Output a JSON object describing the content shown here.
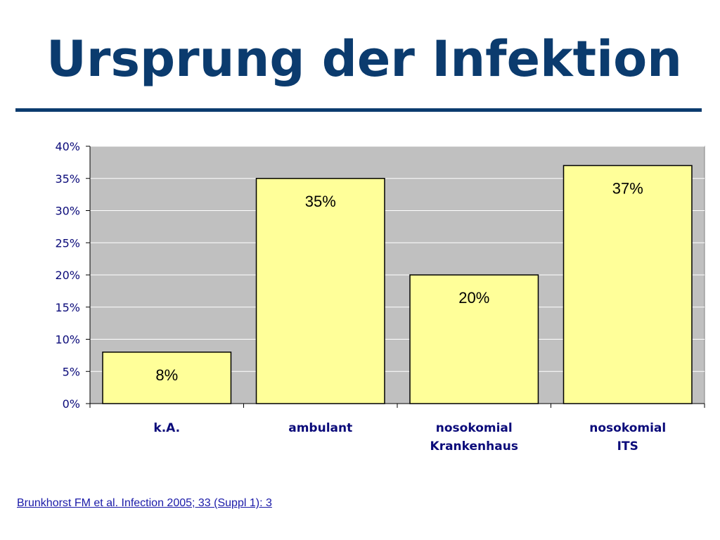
{
  "slide": {
    "title": "Ursprung der Infektion",
    "citation": "Brunkhorst FM et al. Infection 2005; 33 (Suppl 1): 3"
  },
  "colors": {
    "title": "#0b3b6e",
    "plot_background": "#c0c0c0",
    "bar_fill": "#ffff99",
    "bar_stroke": "#000000",
    "axis_text": "#0b0b7a",
    "citation": "#1a1aa8"
  },
  "chart_data": {
    "type": "bar",
    "categories": [
      [
        "k.A."
      ],
      [
        "ambulant"
      ],
      [
        "nosokomial",
        "Krankenhaus"
      ],
      [
        "nosokomial",
        "ITS"
      ]
    ],
    "values": [
      8,
      35,
      20,
      37
    ],
    "data_labels": [
      "8%",
      "35%",
      "20%",
      "37%"
    ],
    "y_ticks": [
      0,
      5,
      10,
      15,
      20,
      25,
      30,
      35,
      40
    ],
    "y_tick_labels": [
      "0%",
      "5%",
      "10%",
      "15%",
      "20%",
      "25%",
      "30%",
      "35%",
      "40%"
    ],
    "ylim": [
      0,
      40
    ],
    "grid": true,
    "legend": "none",
    "xlabel": "",
    "ylabel": ""
  }
}
